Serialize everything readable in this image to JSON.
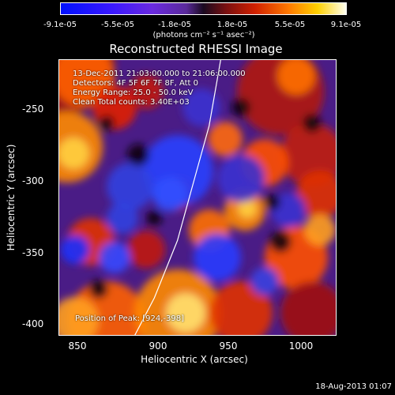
{
  "colorbar": {
    "ticks": [
      "-9.1e-05",
      "-5.5e-05",
      "-1.8e-05",
      "1.8e-05",
      "5.5e-05",
      "9.1e-05"
    ],
    "units": "(photons cm⁻² s⁻¹ asec⁻²)"
  },
  "info": {
    "line1": "13-Dec-2011 21:03:00.000 to 21:06:00.000",
    "line2": "Detectors: 4F 5F 6F 7F 8F, Att 0",
    "line3": "Energy Range: 25.0 - 50.0 keV",
    "line4": "Clean    Total counts: 3.40E+03",
    "peak": "Position of Peak: [924,-398]"
  },
  "timestamp": "18-Aug-2013 01:07",
  "chart_data": {
    "type": "heatmap",
    "title": "Reconstructed RHESSI Image",
    "xlabel": "Heliocentric X (arcsec)",
    "ylabel": "Heliocentric Y (arcsec)",
    "xlim": [
      832,
      1025
    ],
    "ylim": [
      -407,
      -214
    ],
    "xticks": [
      "850",
      "900",
      "950",
      "1000"
    ],
    "yticks": [
      "-250",
      "-300",
      "-350",
      "-400"
    ],
    "limb_curve": [
      [
        884,
        -407
      ],
      [
        898,
        -380
      ],
      [
        914,
        -340
      ],
      [
        925,
        -300
      ],
      [
        936,
        -260
      ],
      [
        944,
        -214
      ]
    ],
    "peak_position": [
      924,
      -398
    ],
    "colorbar_range": [
      -9.1e-05,
      9.1e-05
    ]
  }
}
